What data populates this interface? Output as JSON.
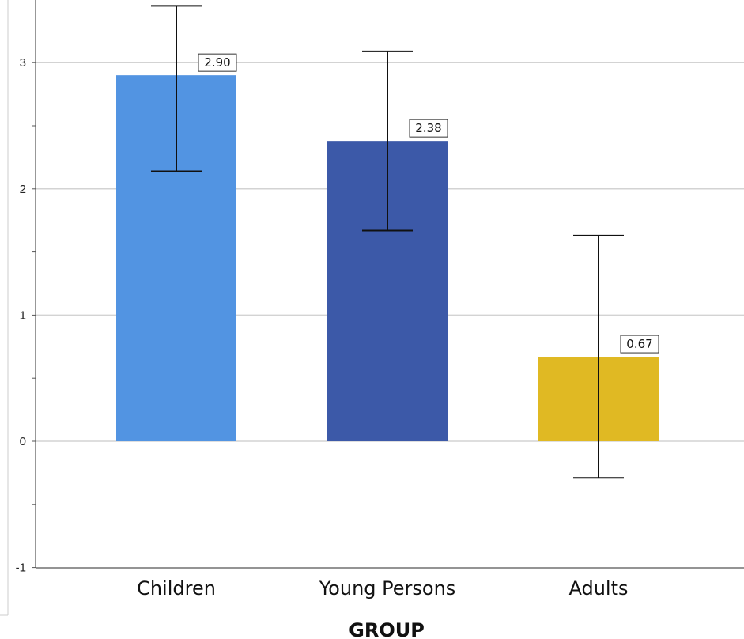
{
  "chart_data": {
    "type": "bar",
    "xlabel": "GROUP",
    "ylabel": "",
    "categories": [
      "Children",
      "Young Persons",
      "Adults"
    ],
    "values": [
      2.9,
      2.38,
      0.67
    ],
    "value_labels": [
      "2.90",
      "2.38",
      "0.67"
    ],
    "error_bars": [
      {
        "low": 2.14,
        "high": 3.45
      },
      {
        "low": 1.67,
        "high": 3.09
      },
      {
        "low": -0.29,
        "high": 1.63
      }
    ],
    "colors": [
      "#5294e2",
      "#3c59a8",
      "#e0b923"
    ],
    "ylim": [
      -1,
      3.45
    ],
    "yticks": [
      -1,
      0,
      1,
      2,
      3
    ],
    "ytick_labels": [
      "-1",
      "0",
      "1",
      "2",
      "3"
    ],
    "grid": true,
    "legend": "none"
  }
}
